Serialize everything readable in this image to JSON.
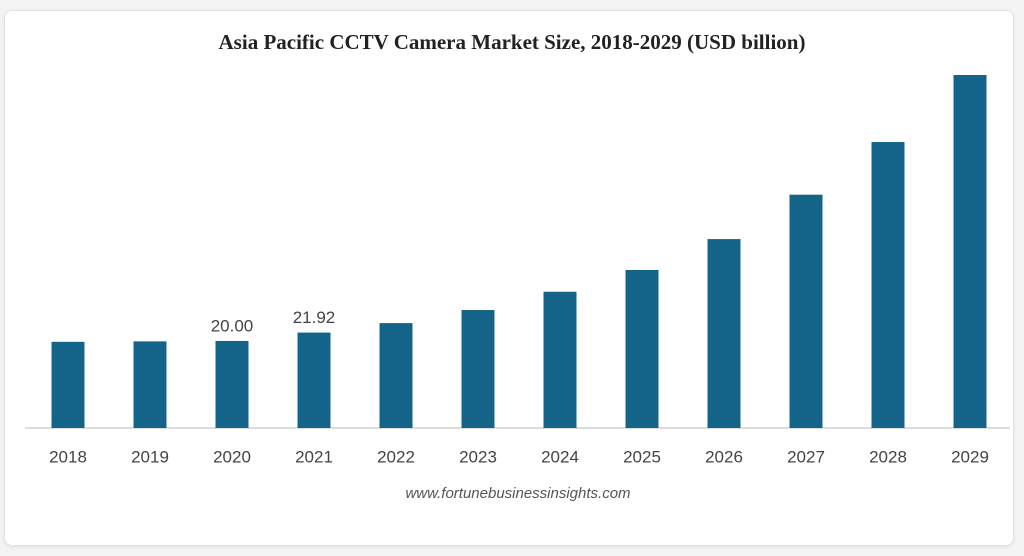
{
  "chart_data": {
    "type": "bar",
    "title": "Asia Pacific CCTV Camera Market Size, 2018-2029 (USD billion)",
    "categories": [
      "2018",
      "2019",
      "2020",
      "2021",
      "2022",
      "2023",
      "2024",
      "2025",
      "2026",
      "2027",
      "2028",
      "2029"
    ],
    "values": [
      19.8,
      19.9,
      20.0,
      21.92,
      24.1,
      27.1,
      31.3,
      36.3,
      43.4,
      53.6,
      65.7,
      81.1
    ],
    "value_labels": [
      null,
      null,
      "20.00",
      "21.92",
      null,
      null,
      null,
      null,
      null,
      null,
      null,
      null
    ],
    "color": "#136488",
    "source": "www.fortunebusinessinsights.com"
  }
}
